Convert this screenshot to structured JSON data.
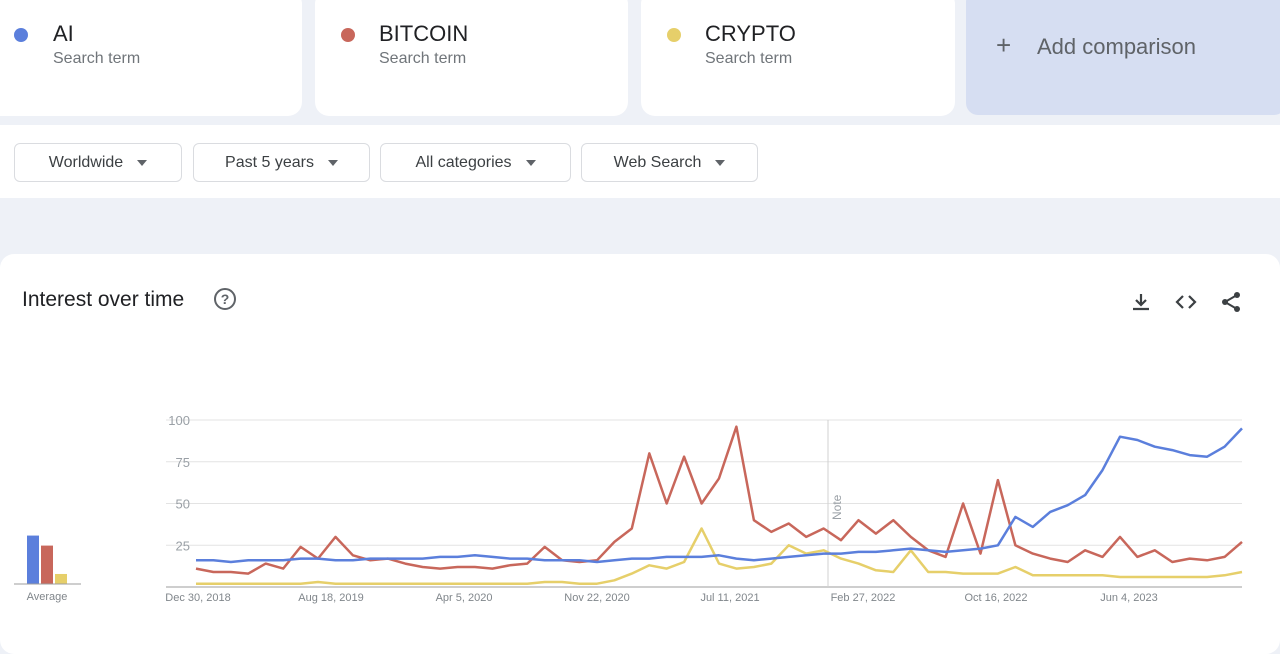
{
  "terms": [
    {
      "name": "AI",
      "sub": "Search term",
      "color": "#5b7fdc"
    },
    {
      "name": "BITCOIN",
      "sub": "Search term",
      "color": "#c8675b"
    },
    {
      "name": "CRYPTO",
      "sub": "Search term",
      "color": "#e6cf6a"
    }
  ],
  "add_comparison": "Add comparison",
  "filters": {
    "region": "Worldwide",
    "time": "Past 5 years",
    "category": "All categories",
    "search_type": "Web Search"
  },
  "panel": {
    "title": "Interest over time",
    "help": "?"
  },
  "chart_data": {
    "type": "line",
    "title": "Interest over time",
    "x_start": "Jan 2019",
    "x_end": "Jan 2024",
    "x_step": "month",
    "x_tick_labels": [
      "Dec 30, 2018",
      "Aug 18, 2019",
      "Apr 5, 2020",
      "Nov 22, 2020",
      "Jul 11, 2021",
      "Feb 27, 2022",
      "Oct 16, 2022",
      "Jun 4, 2023"
    ],
    "y_ticks": [
      25,
      50,
      75,
      100
    ],
    "ylim": [
      0,
      100
    ],
    "grid": true,
    "annotation": "Note",
    "average_label": "Average",
    "series": [
      {
        "name": "AI",
        "color": "#5b7fdc",
        "average": 29,
        "values": [
          16,
          16,
          15,
          16,
          16,
          16,
          17,
          17,
          16,
          16,
          17,
          17,
          17,
          17,
          18,
          18,
          19,
          18,
          17,
          17,
          16,
          16,
          16,
          15,
          16,
          17,
          17,
          18,
          18,
          18,
          19,
          17,
          16,
          17,
          18,
          19,
          20,
          20,
          21,
          21,
          22,
          23,
          22,
          21,
          22,
          23,
          25,
          42,
          36,
          45,
          49,
          55,
          70,
          90,
          88,
          84,
          82,
          79,
          78,
          84,
          95
        ]
      },
      {
        "name": "BITCOIN",
        "color": "#c8675b",
        "average": 23,
        "values": [
          11,
          9,
          9,
          8,
          14,
          11,
          24,
          17,
          30,
          19,
          16,
          17,
          14,
          12,
          11,
          12,
          12,
          11,
          13,
          14,
          24,
          16,
          15,
          16,
          27,
          35,
          80,
          50,
          78,
          50,
          65,
          96,
          40,
          33,
          38,
          30,
          35,
          28,
          40,
          32,
          40,
          30,
          22,
          18,
          50,
          20,
          64,
          25,
          20,
          17,
          15,
          22,
          18,
          30,
          18,
          22,
          15,
          17,
          16,
          18,
          27
        ]
      },
      {
        "name": "CRYPTO",
        "color": "#e6cf6a",
        "average": 6,
        "values": [
          2,
          2,
          2,
          2,
          2,
          2,
          2,
          3,
          2,
          2,
          2,
          2,
          2,
          2,
          2,
          2,
          2,
          2,
          2,
          2,
          3,
          3,
          2,
          2,
          4,
          8,
          13,
          11,
          15,
          35,
          14,
          11,
          12,
          14,
          25,
          20,
          22,
          17,
          14,
          10,
          9,
          22,
          9,
          9,
          8,
          8,
          8,
          12,
          7,
          7,
          7,
          7,
          7,
          6,
          6,
          6,
          6,
          6,
          6,
          7,
          9
        ]
      }
    ]
  }
}
